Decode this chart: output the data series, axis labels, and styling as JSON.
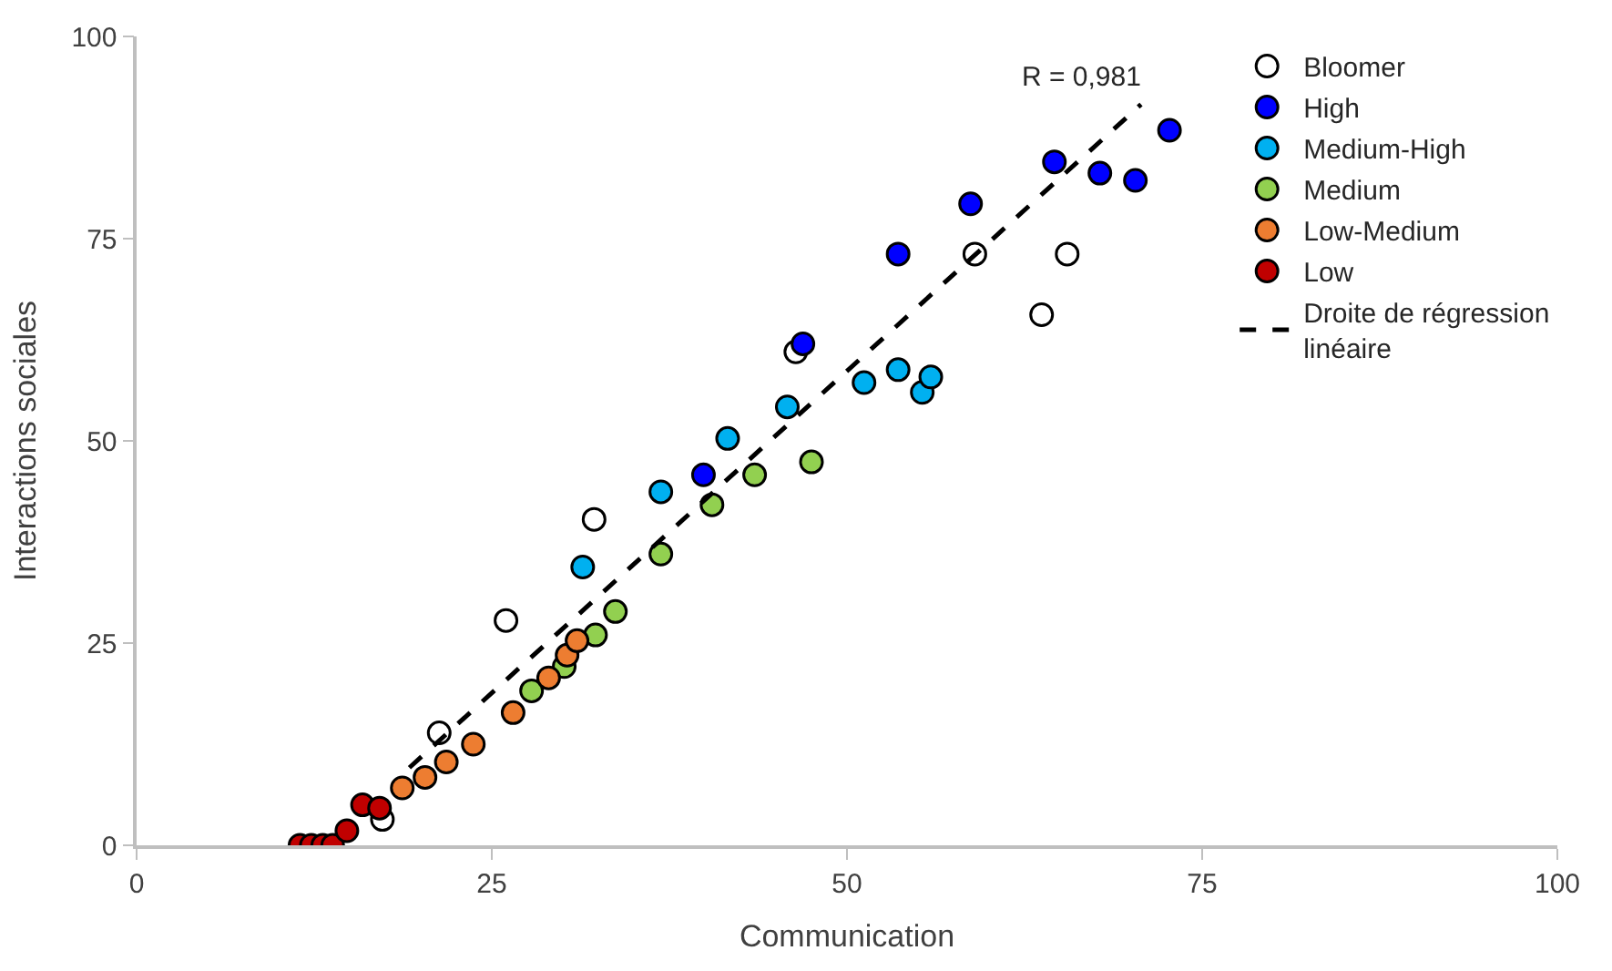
{
  "chart_data": {
    "type": "scatter",
    "xlabel": "Communication",
    "ylabel": "Interactions sociales",
    "xlim": [
      0,
      100
    ],
    "ylim": [
      0,
      100
    ],
    "xticks": [
      0,
      25,
      50,
      75,
      100
    ],
    "yticks": [
      0,
      25,
      50,
      75,
      100
    ],
    "legend": "top right",
    "marker": "circle",
    "annotations": [
      "R = 0,981"
    ],
    "series": [
      {
        "name": "Bloomer",
        "color": "#ffffff",
        "x": [
          17.3,
          21.3,
          26.0,
          32.2,
          46.4,
          59.0,
          63.7,
          65.5
        ],
        "values": [
          3.2,
          13.9,
          27.8,
          40.3,
          61.0,
          73.1,
          65.6,
          73.1
        ]
      },
      {
        "name": "High",
        "color": "#0000ff",
        "x": [
          39.9,
          46.9,
          53.6,
          58.7,
          64.6,
          67.8,
          70.3,
          72.7
        ],
        "values": [
          45.8,
          62.0,
          73.1,
          79.3,
          84.5,
          83.1,
          82.2,
          88.4
        ]
      },
      {
        "name": "Medium-High",
        "color": "#00b0f0",
        "x": [
          31.4,
          36.9,
          41.6,
          45.8,
          51.2,
          53.6,
          55.3,
          55.9
        ],
        "values": [
          34.4,
          43.7,
          50.3,
          54.2,
          57.2,
          58.8,
          56.0,
          57.9
        ]
      },
      {
        "name": "Medium",
        "color": "#92d050",
        "x": [
          27.8,
          30.1,
          32.3,
          33.7,
          36.9,
          40.5,
          43.5,
          47.5
        ],
        "values": [
          19.1,
          22.1,
          26.0,
          28.9,
          36.0,
          42.1,
          45.8,
          47.4
        ]
      },
      {
        "name": "Low-Medium",
        "color": "#ed7d31",
        "x": [
          18.7,
          20.3,
          21.8,
          23.7,
          26.5,
          29.0,
          30.3,
          31.0
        ],
        "values": [
          7.1,
          8.4,
          10.3,
          12.5,
          16.4,
          20.7,
          23.5,
          25.3
        ]
      },
      {
        "name": "Low",
        "color": "#c00000",
        "x": [
          11.5,
          12.3,
          13.1,
          13.8,
          14.8,
          15.9,
          17.1
        ],
        "values": [
          0,
          0,
          0,
          0,
          1.8,
          5.0,
          4.6
        ]
      },
      {
        "name": "Droite de régression linéaire",
        "type": "line",
        "color": "#000000",
        "line_style": "dashed",
        "marker": "none",
        "x": [
          19.2,
          70.7
        ],
        "values": [
          9.6,
          91.6
        ]
      }
    ]
  }
}
